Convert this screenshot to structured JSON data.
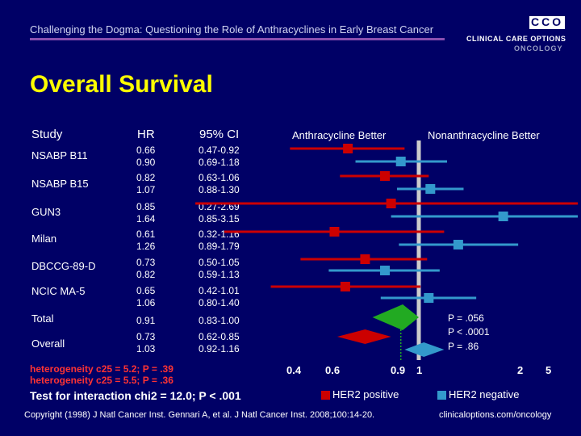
{
  "header": {
    "title": "Challenging the Dogma: Questioning the Role of Anthracyclines in Early Breast Cancer",
    "logo_letters": "CCO",
    "logo_line1": "CLINICAL CARE OPTIONS",
    "logo_line2": "ONCOLOGY"
  },
  "slide_title": "Overall Survival",
  "columns": {
    "study": "Study",
    "hr": "HR",
    "ci": "95% CI"
  },
  "side_labels": {
    "left": "Anthracycline Better",
    "right": "Nonanthracycline Better"
  },
  "rows": [
    {
      "study": "NSABP B11",
      "hr": [
        "0.66",
        "0.90"
      ],
      "ci": [
        "0.47-0.92",
        "0.69-1.18"
      ]
    },
    {
      "study": "NSABP B15",
      "hr": [
        "0.82",
        "1.07"
      ],
      "ci": [
        "0.63-1.06",
        "0.88-1.30"
      ]
    },
    {
      "study": "GUN3",
      "hr": [
        "0.85",
        "1.64"
      ],
      "ci": [
        "0.27-2.69",
        "0.85-3.15"
      ]
    },
    {
      "study": "Milan",
      "hr": [
        "0.61",
        "1.26"
      ],
      "ci": [
        "0.32-1.16",
        "0.89-1.79"
      ]
    },
    {
      "study": "DBCCG-89-D",
      "hr": [
        "0.73",
        "0.82"
      ],
      "ci": [
        "0.50-1.05",
        "0.59-1.13"
      ]
    },
    {
      "study": "NCIC MA-5",
      "hr": [
        "0.65",
        "1.06"
      ],
      "ci": [
        "0.42-1.01",
        "0.80-1.40"
      ]
    },
    {
      "study": "Total",
      "hr": [
        "0.91"
      ],
      "ci": [
        "0.83-1.00"
      ]
    },
    {
      "study": "Overall",
      "hr": [
        "0.73",
        "1.03"
      ],
      "ci": [
        "0.62-0.85",
        "0.92-1.16"
      ]
    }
  ],
  "heterogeneity": {
    "line1": "heterogeneity c25 = 5.2; P = .39",
    "line2": "heterogeneity c25 = 5.5; P = .36"
  },
  "interaction_test": "Test for interaction chi2 = 12.0; P < .001",
  "p_values": [
    "P = .056",
    "P < .0001",
    "P = .86"
  ],
  "x_ticks": [
    {
      "label": "0.4",
      "value": 0.4
    },
    {
      "label": "0.6",
      "value": 0.6
    },
    {
      "label": "0.9",
      "value": 0.9
    },
    {
      "label": "1",
      "value": 1.0
    },
    {
      "label": "2",
      "value": 2.0
    },
    {
      "label": "5",
      "value": 5.0
    }
  ],
  "legend": [
    {
      "label": "HER2 positive",
      "color": "#cc0000"
    },
    {
      "label": "HER2 negative",
      "color": "#3399cc"
    }
  ],
  "colors": {
    "total": "#22aa22",
    "reference_line": "#cccccc"
  },
  "footer": {
    "left": "Copyright (1998) J Natl Cancer Inst. Gennari A, et al. J Natl Cancer Inst. 2008;100:14-20.",
    "right": "clinicaloptions.com/oncology"
  },
  "chart_data": {
    "type": "forest",
    "x_scale": "log",
    "reference_lines": [
      1.0,
      0.9
    ],
    "series": [
      {
        "name": "HER2 positive",
        "points": [
          {
            "study": "NSABP B11",
            "hr": 0.66,
            "lo": 0.47,
            "hi": 0.92
          },
          {
            "study": "NSABP B15",
            "hr": 0.82,
            "lo": 0.63,
            "hi": 1.06
          },
          {
            "study": "GUN3",
            "hr": 0.85,
            "lo": 0.27,
            "hi": 2.69
          },
          {
            "study": "Milan",
            "hr": 0.61,
            "lo": 0.32,
            "hi": 1.16
          },
          {
            "study": "DBCCG-89-D",
            "hr": 0.73,
            "lo": 0.5,
            "hi": 1.05
          },
          {
            "study": "NCIC MA-5",
            "hr": 0.65,
            "lo": 0.42,
            "hi": 1.01
          },
          {
            "study": "Overall",
            "hr": 0.73,
            "lo": 0.62,
            "hi": 0.85
          }
        ]
      },
      {
        "name": "HER2 negative",
        "points": [
          {
            "study": "NSABP B11",
            "hr": 0.9,
            "lo": 0.69,
            "hi": 1.18
          },
          {
            "study": "NSABP B15",
            "hr": 1.07,
            "lo": 0.88,
            "hi": 1.3
          },
          {
            "study": "GUN3",
            "hr": 1.64,
            "lo": 0.85,
            "hi": 3.15
          },
          {
            "study": "Milan",
            "hr": 1.26,
            "lo": 0.89,
            "hi": 1.79
          },
          {
            "study": "DBCCG-89-D",
            "hr": 0.82,
            "lo": 0.59,
            "hi": 1.13
          },
          {
            "study": "NCIC MA-5",
            "hr": 1.06,
            "lo": 0.8,
            "hi": 1.4
          },
          {
            "study": "Overall",
            "hr": 1.03,
            "lo": 0.92,
            "hi": 1.16
          }
        ]
      },
      {
        "name": "Total",
        "points": [
          {
            "study": "Total",
            "hr": 0.91,
            "lo": 0.83,
            "hi": 1.0
          }
        ]
      }
    ]
  }
}
